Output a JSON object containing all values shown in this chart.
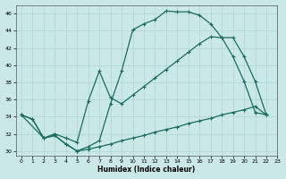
{
  "xlabel": "Humidex (Indice chaleur)",
  "xlim": [
    -0.5,
    23
  ],
  "ylim": [
    29.5,
    47
  ],
  "xticks": [
    0,
    1,
    2,
    3,
    4,
    5,
    6,
    7,
    8,
    9,
    10,
    11,
    12,
    13,
    14,
    15,
    16,
    17,
    18,
    19,
    20,
    21,
    22,
    23
  ],
  "yticks": [
    30,
    32,
    34,
    36,
    38,
    40,
    42,
    44,
    46
  ],
  "bg_color": "#c9e8e6",
  "line_color": "#1a6b5e",
  "grid_color": "#b0d4d0",
  "curve1_x": [
    0,
    1,
    2,
    3,
    4,
    5,
    6,
    7,
    8,
    9,
    10,
    11,
    12,
    13,
    14,
    15,
    16,
    17,
    18,
    19,
    20,
    21,
    22
  ],
  "curve1_y": [
    34.2,
    33.7,
    31.5,
    31.8,
    30.8,
    30.0,
    30.5,
    31.2,
    35.5,
    39.3,
    44.1,
    44.8,
    45.3,
    46.3,
    46.2,
    46.2,
    45.8,
    44.8,
    43.2,
    41.0,
    38.1,
    34.5,
    34.2
  ],
  "curve2_x": [
    0,
    2,
    3,
    4,
    5,
    6,
    7,
    8,
    9,
    10,
    11,
    12,
    13,
    14,
    15,
    16,
    17,
    18,
    19,
    20,
    21,
    22
  ],
  "curve2_y": [
    34.2,
    31.5,
    32.0,
    31.5,
    31.0,
    35.8,
    39.3,
    36.2,
    35.5,
    36.5,
    37.5,
    38.5,
    39.5,
    40.5,
    41.5,
    42.5,
    43.3,
    43.2,
    43.2,
    41.0,
    38.1,
    34.2
  ],
  "curve3_x": [
    0,
    1,
    2,
    3,
    4,
    5,
    6,
    7,
    8,
    9,
    10,
    11,
    12,
    13,
    14,
    15,
    16,
    17,
    18,
    19,
    20,
    21,
    22
  ],
  "curve3_y": [
    34.2,
    33.7,
    31.5,
    31.8,
    30.8,
    30.0,
    30.2,
    30.5,
    30.8,
    31.2,
    31.5,
    31.8,
    32.2,
    32.5,
    32.8,
    33.2,
    33.5,
    33.8,
    34.2,
    34.5,
    34.8,
    35.2,
    34.2
  ]
}
